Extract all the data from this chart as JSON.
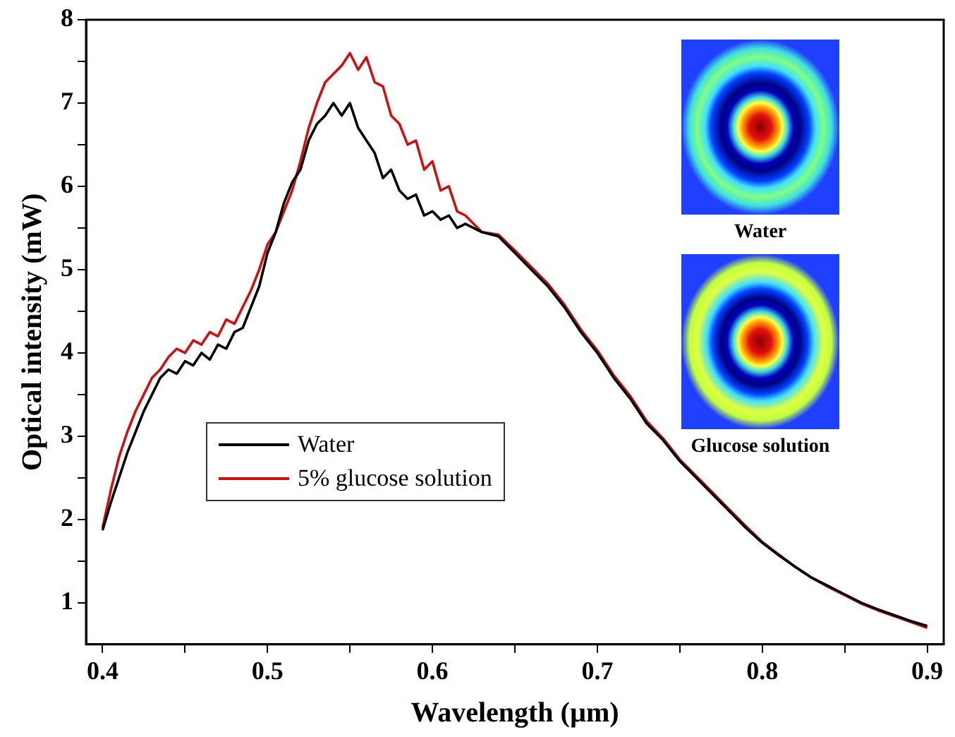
{
  "chart_data": {
    "type": "line",
    "xlabel": "Wavelength (µm)",
    "ylabel": "Optical intensity (mW)",
    "xlim": [
      0.39,
      0.91
    ],
    "xticks": [
      0.4,
      {
        "value": 0.45,
        "label": null
      },
      0.5,
      {
        "value": 0.55,
        "label": null
      },
      0.6,
      {
        "value": 0.65,
        "label": null
      },
      0.7,
      {
        "value": 0.75,
        "label": null
      },
      0.8,
      {
        "value": 0.85,
        "label": null
      },
      0.9
    ],
    "ylim": [
      0.5,
      8
    ],
    "yticks": [
      1,
      {
        "value": 1.5,
        "label": null
      },
      2,
      {
        "value": 2.5,
        "label": null
      },
      3,
      {
        "value": 3.5,
        "label": null
      },
      4,
      {
        "value": 4.5,
        "label": null
      },
      5,
      {
        "value": 5.5,
        "label": null
      },
      6,
      {
        "value": 6.5,
        "label": null
      },
      7,
      {
        "value": 7.5,
        "label": null
      },
      8
    ],
    "grid": false,
    "legend": "bottom left",
    "marker": "none",
    "line_style": "solid",
    "annotations": [
      "Water",
      "Glucose solution"
    ],
    "series": [
      {
        "name": "Water",
        "color": "#000000",
        "x": [
          0.4,
          0.405,
          0.41,
          0.415,
          0.42,
          0.425,
          0.43,
          0.435,
          0.44,
          0.445,
          0.45,
          0.455,
          0.46,
          0.465,
          0.47,
          0.475,
          0.48,
          0.485,
          0.49,
          0.495,
          0.5,
          0.505,
          0.51,
          0.515,
          0.52,
          0.525,
          0.53,
          0.535,
          0.54,
          0.545,
          0.55,
          0.555,
          0.56,
          0.565,
          0.57,
          0.575,
          0.58,
          0.585,
          0.59,
          0.595,
          0.6,
          0.605,
          0.61,
          0.615,
          0.62,
          0.63,
          0.64,
          0.65,
          0.66,
          0.67,
          0.68,
          0.69,
          0.7,
          0.71,
          0.72,
          0.73,
          0.74,
          0.75,
          0.76,
          0.77,
          0.78,
          0.79,
          0.8,
          0.81,
          0.82,
          0.83,
          0.84,
          0.85,
          0.86,
          0.87,
          0.88,
          0.89,
          0.9
        ],
        "values": [
          1.87,
          2.2,
          2.5,
          2.8,
          3.05,
          3.3,
          3.5,
          3.7,
          3.8,
          3.75,
          3.9,
          3.85,
          4.0,
          3.92,
          4.1,
          4.05,
          4.25,
          4.3,
          4.55,
          4.8,
          5.2,
          5.45,
          5.8,
          6.05,
          6.2,
          6.55,
          6.75,
          6.85,
          7.0,
          6.85,
          7.0,
          6.7,
          6.55,
          6.4,
          6.1,
          6.2,
          5.95,
          5.85,
          5.9,
          5.65,
          5.7,
          5.6,
          5.65,
          5.5,
          5.55,
          5.45,
          5.4,
          5.2,
          5.0,
          4.8,
          4.55,
          4.25,
          4.0,
          3.7,
          3.45,
          3.15,
          2.95,
          2.7,
          2.5,
          2.3,
          2.1,
          1.9,
          1.72,
          1.57,
          1.43,
          1.3,
          1.2,
          1.1,
          1.0,
          0.92,
          0.85,
          0.78,
          0.72
        ]
      },
      {
        "name": "5% glucose solution",
        "color": "#d01010",
        "x": [
          0.4,
          0.405,
          0.41,
          0.415,
          0.42,
          0.425,
          0.43,
          0.435,
          0.44,
          0.445,
          0.45,
          0.455,
          0.46,
          0.465,
          0.47,
          0.475,
          0.48,
          0.485,
          0.49,
          0.495,
          0.5,
          0.505,
          0.51,
          0.515,
          0.52,
          0.525,
          0.53,
          0.535,
          0.54,
          0.545,
          0.55,
          0.555,
          0.56,
          0.565,
          0.57,
          0.575,
          0.58,
          0.585,
          0.59,
          0.595,
          0.6,
          0.605,
          0.61,
          0.615,
          0.62,
          0.63,
          0.64,
          0.65,
          0.66,
          0.67,
          0.68,
          0.69,
          0.7,
          0.71,
          0.72,
          0.73,
          0.74,
          0.75,
          0.76,
          0.77,
          0.78,
          0.79,
          0.8,
          0.81,
          0.82,
          0.83,
          0.84,
          0.85,
          0.86,
          0.87,
          0.88,
          0.89,
          0.9
        ],
        "values": [
          1.9,
          2.35,
          2.75,
          3.05,
          3.3,
          3.5,
          3.7,
          3.8,
          3.95,
          4.05,
          4.0,
          4.15,
          4.1,
          4.25,
          4.2,
          4.4,
          4.35,
          4.55,
          4.75,
          5.0,
          5.3,
          5.45,
          5.7,
          5.95,
          6.3,
          6.7,
          7.0,
          7.25,
          7.35,
          7.45,
          7.6,
          7.4,
          7.55,
          7.25,
          7.2,
          6.85,
          6.75,
          6.5,
          6.55,
          6.2,
          6.3,
          5.95,
          6.0,
          5.7,
          5.65,
          5.45,
          5.42,
          5.23,
          5.03,
          4.83,
          4.58,
          4.28,
          4.03,
          3.73,
          3.48,
          3.18,
          2.97,
          2.72,
          2.52,
          2.32,
          2.12,
          1.92,
          1.73,
          1.58,
          1.43,
          1.3,
          1.19,
          1.09,
          0.99,
          0.91,
          0.84,
          0.77,
          0.7
        ]
      }
    ]
  }
}
